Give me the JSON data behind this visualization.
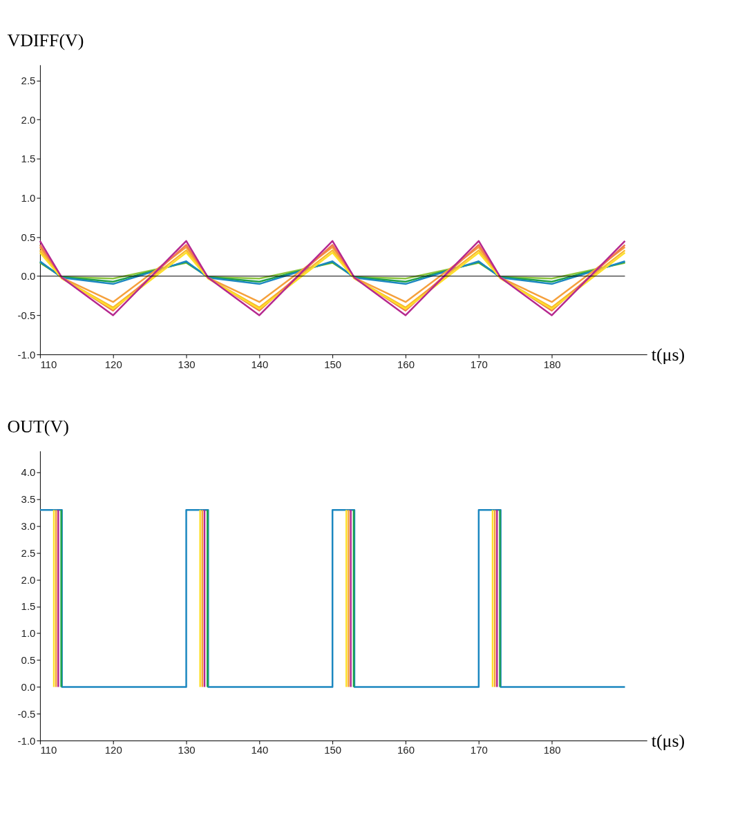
{
  "chart_data": [
    {
      "type": "line",
      "ylabel": "VDIFF(V)",
      "xlabel": "t(μs)",
      "xlim": [
        110,
        193
      ],
      "xticks": [
        110,
        120,
        130,
        140,
        150,
        160,
        170,
        180
      ],
      "ylim": [
        -1.0,
        2.7
      ],
      "yticks": [
        {
          "value": -1.0,
          "label": "-1.0"
        },
        -0.5,
        {
          "value": 0,
          "label": "0.0"
        },
        0.5,
        {
          "value": 1,
          "label": "1.0"
        },
        1.5,
        {
          "value": 2,
          "label": "2.0"
        },
        2.5
      ],
      "grid": false,
      "legend": false,
      "x": [
        110,
        113,
        120,
        130,
        133,
        140,
        150,
        153,
        160,
        170,
        173,
        180,
        190
      ],
      "ref_lines": [
        {
          "axis": "y",
          "value": 0,
          "color": "#000000"
        }
      ],
      "series": [
        {
          "color": "#8cc63f",
          "values": [
            0.17,
            -0.01,
            -0.03,
            0.17,
            -0.01,
            -0.03,
            0.17,
            -0.01,
            -0.03,
            0.17,
            -0.01,
            -0.03,
            0.17
          ]
        },
        {
          "color": "#1fa14a",
          "values": [
            0.18,
            -0.01,
            -0.07,
            0.18,
            -0.01,
            -0.07,
            0.18,
            -0.01,
            -0.07,
            0.18,
            -0.01,
            -0.07,
            0.18
          ]
        },
        {
          "color": "#1b87c0",
          "values": [
            0.19,
            -0.02,
            -0.1,
            0.19,
            -0.02,
            -0.1,
            0.19,
            -0.02,
            -0.1,
            0.19,
            -0.02,
            -0.1,
            0.19
          ]
        },
        {
          "color": "#f5a03c",
          "values": [
            0.37,
            -0.02,
            -0.33,
            0.37,
            -0.02,
            -0.33,
            0.37,
            -0.02,
            -0.33,
            0.37,
            -0.02,
            -0.33,
            0.37
          ]
        },
        {
          "color": "#f8b830",
          "values": [
            0.33,
            -0.03,
            -0.4,
            0.33,
            -0.03,
            -0.4,
            0.33,
            -0.03,
            -0.4,
            0.33,
            -0.03,
            -0.4,
            0.33
          ]
        },
        {
          "color": "#f07a50",
          "values": [
            0.4,
            -0.02,
            -0.44,
            0.4,
            -0.02,
            -0.44,
            0.4,
            -0.02,
            -0.44,
            0.4,
            -0.02,
            -0.44,
            0.4
          ]
        },
        {
          "color": "#fde02a",
          "values": [
            0.3,
            -0.03,
            -0.42,
            0.3,
            -0.03,
            -0.42,
            0.3,
            -0.03,
            -0.42,
            0.3,
            -0.03,
            -0.42,
            0.3
          ]
        },
        {
          "color": "#b5288f",
          "values": [
            0.45,
            -0.02,
            -0.5,
            0.45,
            -0.02,
            -0.5,
            0.45,
            -0.02,
            -0.5,
            0.45,
            -0.02,
            -0.5,
            0.45
          ]
        }
      ]
    },
    {
      "type": "line",
      "ylabel": "OUT(V)",
      "xlabel": "t(μs)",
      "xlim": [
        110,
        193
      ],
      "xticks": [
        110,
        120,
        130,
        140,
        150,
        160,
        170,
        180
      ],
      "ylim": [
        -1.0,
        4.4
      ],
      "yticks": [
        {
          "value": -1.0,
          "label": "-1.0"
        },
        -0.5,
        {
          "value": 0,
          "label": "0.0"
        },
        0.5,
        {
          "value": 1,
          "label": "1.0"
        },
        1.5,
        {
          "value": 2,
          "label": "2.0"
        },
        2.5,
        {
          "value": 3,
          "label": "3.0"
        },
        3.5,
        {
          "value": 4,
          "label": "4.0"
        }
      ],
      "grid": false,
      "legend": false,
      "series": [
        {
          "color": "#1b87c0",
          "x": [
            110,
            113,
            113,
            130,
            130,
            133,
            133,
            150,
            150,
            153,
            153,
            170,
            170,
            173,
            173,
            190
          ],
          "values": [
            3.3,
            3.3,
            0,
            0,
            3.3,
            3.3,
            0,
            0,
            3.3,
            3.3,
            0,
            0,
            3.3,
            3.3,
            0,
            0
          ]
        },
        {
          "color": "#1fa14a",
          "x": [
            112.9,
            112.9,
            113,
            132.9,
            132.9,
            133,
            152.9,
            152.9,
            153,
            172.9,
            172.9
          ],
          "values": [
            3.3,
            0,
            null,
            3.3,
            0,
            null,
            3.3,
            0,
            null,
            3.3,
            0
          ]
        },
        {
          "color": "#b5288f",
          "x": [
            112.5,
            112.5,
            113,
            132.5,
            132.5,
            133,
            152.5,
            152.5,
            153,
            172.5,
            172.5
          ],
          "values": [
            3.3,
            0,
            null,
            3.3,
            0,
            null,
            3.3,
            0,
            null,
            3.3,
            0
          ]
        },
        {
          "color": "#f5a03c",
          "x": [
            112.2,
            112.2,
            113,
            132.2,
            132.2,
            133,
            152.2,
            152.2,
            153,
            172.2,
            172.2
          ],
          "values": [
            3.3,
            0,
            null,
            3.3,
            0,
            null,
            3.3,
            0,
            null,
            3.3,
            0
          ]
        },
        {
          "color": "#fde02a",
          "x": [
            111.9,
            111.9,
            113,
            131.9,
            131.9,
            133,
            151.9,
            151.9,
            153,
            171.9,
            171.9
          ],
          "values": [
            3.3,
            0,
            null,
            3.3,
            0,
            null,
            3.3,
            0,
            null,
            3.3,
            0
          ]
        }
      ]
    }
  ]
}
